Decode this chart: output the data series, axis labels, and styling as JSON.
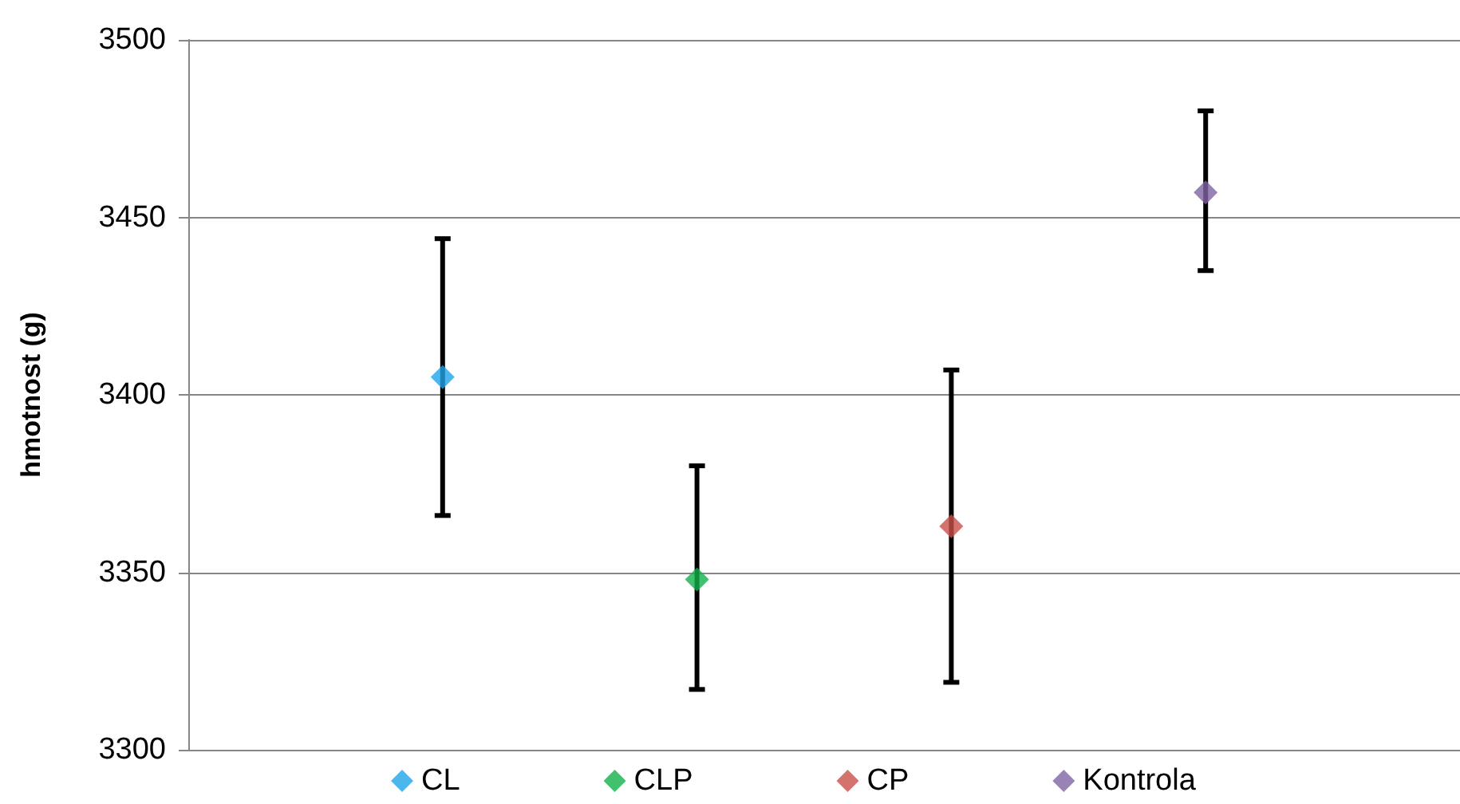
{
  "chart_data": {
    "type": "scatter",
    "ylabel": "hmotnost (g)",
    "categories": [
      null,
      null,
      null,
      null,
      null,
      null
    ],
    "ylim": [
      3300,
      3500
    ],
    "yticks": [
      3300,
      3350,
      3400,
      3450,
      3500
    ],
    "tick_labels": "y",
    "grid": "y",
    "legend": "bottom",
    "marker": "diamond",
    "series": [
      {
        "name": "CL",
        "color": "#1ea5e8",
        "values": [
          null,
          3405,
          null,
          null,
          null,
          null
        ],
        "errors": [
          null,
          [
            3366,
            3444
          ],
          null,
          null,
          null,
          null
        ]
      },
      {
        "name": "CLP",
        "color": "#12b04a",
        "values": [
          null,
          null,
          3348,
          null,
          null,
          null
        ],
        "errors": [
          null,
          null,
          [
            3317,
            3380
          ],
          null,
          null,
          null
        ]
      },
      {
        "name": "CP",
        "color": "#c94f4a",
        "values": [
          null,
          null,
          null,
          3363,
          null,
          null
        ],
        "errors": [
          null,
          null,
          null,
          [
            3319,
            3407
          ],
          null,
          null
        ]
      },
      {
        "name": "Kontrola",
        "color": "#8064a2",
        "values": [
          null,
          null,
          null,
          null,
          3457,
          null
        ],
        "errors": [
          null,
          null,
          null,
          null,
          [
            3435,
            3480
          ],
          null
        ]
      }
    ]
  }
}
